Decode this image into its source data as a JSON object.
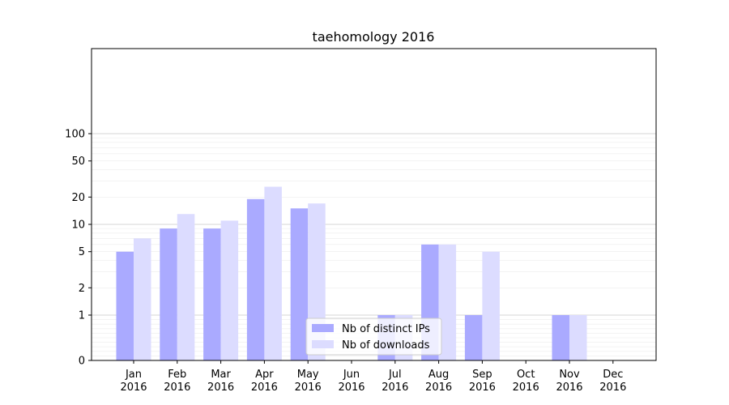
{
  "chart_data": {
    "type": "bar",
    "title": "taehomology 2016",
    "xlabel": "",
    "ylabel": "",
    "yscale": "symlog",
    "ylim": [
      0,
      110
    ],
    "yticks": [
      0,
      1,
      2,
      5,
      10,
      20,
      50,
      100
    ],
    "grid": "horizontal",
    "legend_position": "bottom-center",
    "categories": [
      {
        "month": "Jan",
        "year": "2016"
      },
      {
        "month": "Feb",
        "year": "2016"
      },
      {
        "month": "Mar",
        "year": "2016"
      },
      {
        "month": "Apr",
        "year": "2016"
      },
      {
        "month": "May",
        "year": "2016"
      },
      {
        "month": "Jun",
        "year": "2016"
      },
      {
        "month": "Jul",
        "year": "2016"
      },
      {
        "month": "Aug",
        "year": "2016"
      },
      {
        "month": "Sep",
        "year": "2016"
      },
      {
        "month": "Oct",
        "year": "2016"
      },
      {
        "month": "Nov",
        "year": "2016"
      },
      {
        "month": "Dec",
        "year": "2016"
      }
    ],
    "series": [
      {
        "name": "Nb of distinct IPs",
        "color": "#aaaaff",
        "values": [
          5,
          9,
          9,
          19,
          15,
          0,
          1,
          6,
          1,
          0,
          1,
          0
        ]
      },
      {
        "name": "Nb of downloads",
        "color": "#dcdcff",
        "values": [
          7,
          13,
          11,
          26,
          17,
          0,
          1,
          6,
          5,
          0,
          1,
          0
        ]
      }
    ]
  }
}
